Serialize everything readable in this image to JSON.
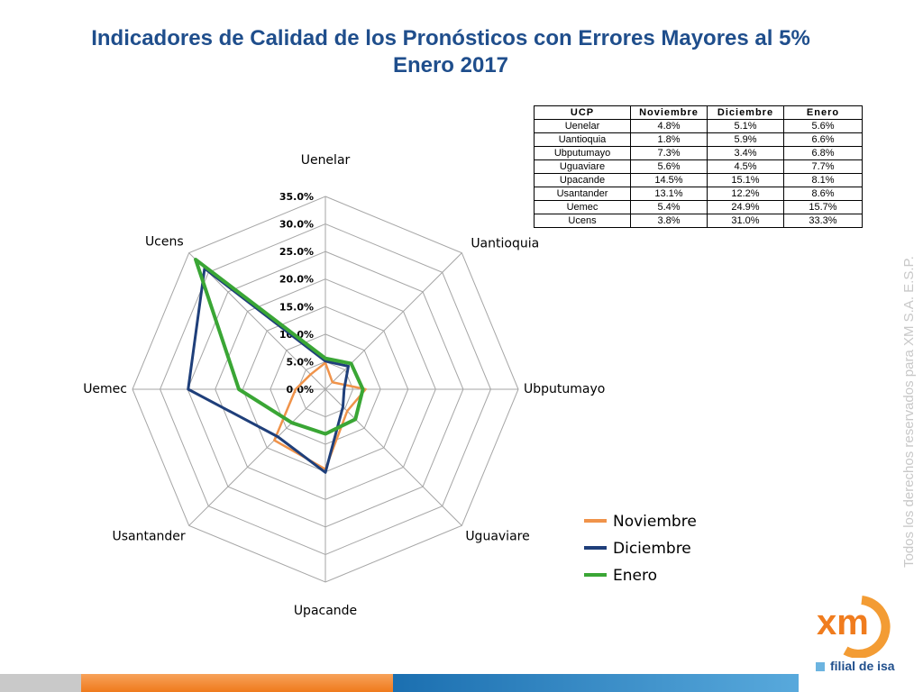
{
  "header": {
    "title_line1": "Indicadores de Calidad de los Pronósticos con Errores Mayores al 5%",
    "title_line2": "Enero 2017"
  },
  "table": {
    "headers": [
      "UCP",
      "Noviembre",
      "Diciembre",
      "Enero"
    ],
    "rows": [
      [
        "Uenelar",
        "4.8%",
        "5.1%",
        "5.6%"
      ],
      [
        "Uantioquia",
        "1.8%",
        "5.9%",
        "6.6%"
      ],
      [
        "Ubputumayo",
        "7.3%",
        "3.4%",
        "6.8%"
      ],
      [
        "Uguaviare",
        "5.6%",
        "4.5%",
        "7.7%"
      ],
      [
        "Upacande",
        "14.5%",
        "15.1%",
        "8.1%"
      ],
      [
        "Usantander",
        "13.1%",
        "12.2%",
        "8.6%"
      ],
      [
        "Uemec",
        "5.4%",
        "24.9%",
        "15.7%"
      ],
      [
        "Ucens",
        "3.8%",
        "31.0%",
        "33.3%"
      ]
    ]
  },
  "chart_data": {
    "type": "radar",
    "categories": [
      "Uenelar",
      "Uantioquia",
      "Ubputumayo",
      "Uguaviare",
      "Upacande",
      "Usantander",
      "Uemec",
      "Ucens"
    ],
    "series": [
      {
        "name": "Noviembre",
        "color": "#f0934a",
        "values": [
          4.8,
          1.8,
          7.3,
          5.6,
          14.5,
          13.1,
          5.4,
          3.8
        ]
      },
      {
        "name": "Diciembre",
        "color": "#1f3f7a",
        "values": [
          5.1,
          5.9,
          3.4,
          4.5,
          15.1,
          12.2,
          24.9,
          31.0
        ]
      },
      {
        "name": "Enero",
        "color": "#3aa635",
        "values": [
          5.6,
          6.6,
          6.8,
          7.7,
          8.1,
          8.6,
          15.7,
          33.3
        ]
      }
    ],
    "tick_labels": [
      "0.0%",
      "5.0%",
      "10.0%",
      "15.0%",
      "20.0%",
      "25.0%",
      "30.0%",
      "35.0%"
    ],
    "ylim": [
      0,
      35
    ],
    "grid": true,
    "legend_position": "bottom-right"
  },
  "footer": {
    "vertical_text": "Todos los derechos reservados para XM S.A. E.S.P.",
    "logo_text": "xm",
    "brand_text": "filial de isa"
  },
  "colors": {
    "title": "#1f4e8c",
    "bar_gray": "#c9c9c9",
    "bar_orange": "#f07c1e",
    "bar_blue": "#2b7bb9",
    "logo_orange": "#f39c34"
  }
}
